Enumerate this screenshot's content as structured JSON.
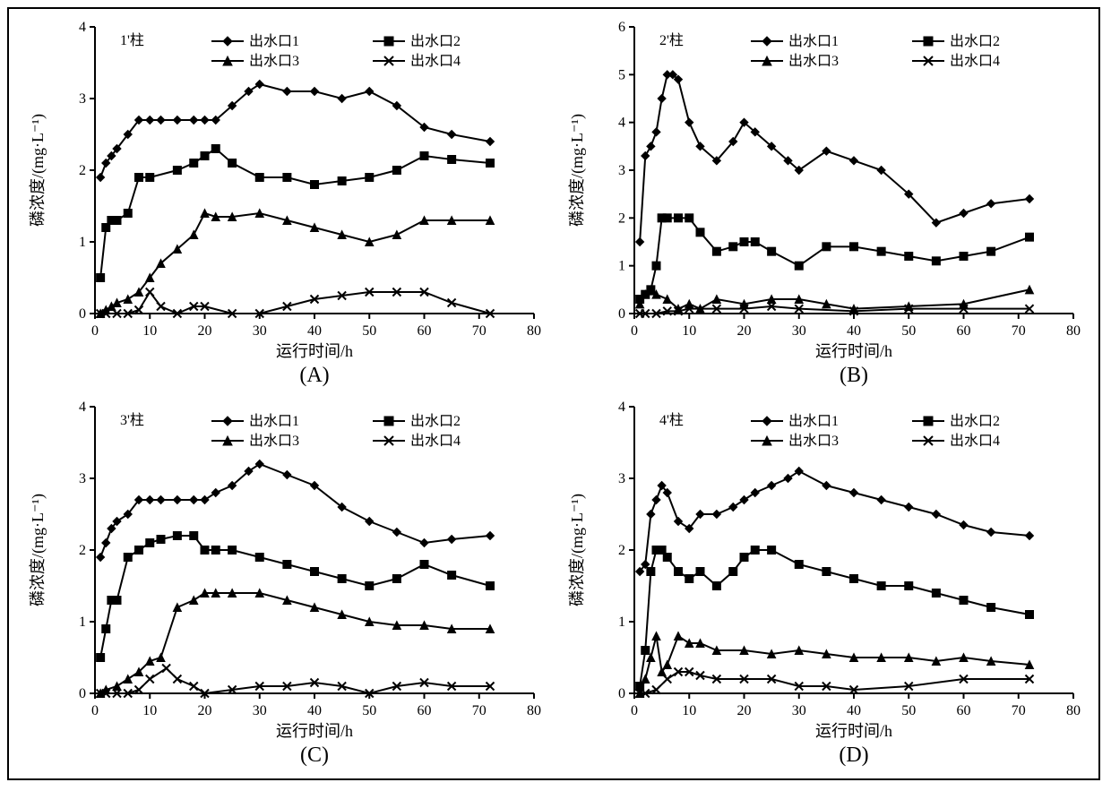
{
  "figure": {
    "background_color": "#ffffff",
    "frame_border_color": "#000000",
    "line_color": "#000000",
    "marker_fill": "#000000",
    "font_family": "SimSun, serif",
    "axis_fontsize": 18,
    "tick_fontsize": 16,
    "legend_fontsize": 16,
    "sublabel_fontsize": 24,
    "panel_layout": "2x2",
    "line_width": 2,
    "marker_size": 6
  },
  "legend_labels": [
    "出水口1",
    "出水口2",
    "出水口3",
    "出水口4"
  ],
  "legend_markers": [
    "diamond",
    "square",
    "triangle",
    "cross"
  ],
  "xlabel": "运行时间/h",
  "ylabel": "磷浓度/(mg·L⁻¹)",
  "panels": {
    "A": {
      "column_title": "1'柱",
      "sublabel": "(A)",
      "xlim": [
        0,
        80
      ],
      "xtick_step": 10,
      "ylim": [
        0,
        4
      ],
      "ytick_step": 1,
      "series": {
        "out1": {
          "x": [
            1,
            2,
            3,
            4,
            6,
            8,
            10,
            12,
            15,
            18,
            20,
            22,
            25,
            28,
            30,
            35,
            40,
            45,
            50,
            55,
            60,
            65,
            72
          ],
          "y": [
            1.9,
            2.1,
            2.2,
            2.3,
            2.5,
            2.7,
            2.7,
            2.7,
            2.7,
            2.7,
            2.7,
            2.7,
            2.9,
            3.1,
            3.2,
            3.1,
            3.1,
            3.0,
            3.1,
            2.9,
            2.6,
            2.5,
            2.4
          ]
        },
        "out2": {
          "x": [
            1,
            2,
            3,
            4,
            6,
            8,
            10,
            15,
            18,
            20,
            22,
            25,
            30,
            35,
            40,
            45,
            50,
            55,
            60,
            65,
            72
          ],
          "y": [
            0.5,
            1.2,
            1.3,
            1.3,
            1.4,
            1.9,
            1.9,
            2.0,
            2.1,
            2.2,
            2.3,
            2.1,
            1.9,
            1.9,
            1.8,
            1.85,
            1.9,
            2.0,
            2.2,
            2.15,
            2.1
          ]
        },
        "out3": {
          "x": [
            1,
            2,
            3,
            4,
            6,
            8,
            10,
            12,
            15,
            18,
            20,
            22,
            25,
            30,
            35,
            40,
            45,
            50,
            55,
            60,
            65,
            72
          ],
          "y": [
            0,
            0.05,
            0.1,
            0.15,
            0.2,
            0.3,
            0.5,
            0.7,
            0.9,
            1.1,
            1.4,
            1.35,
            1.35,
            1.4,
            1.3,
            1.2,
            1.1,
            1.0,
            1.1,
            1.3,
            1.3,
            1.3
          ]
        },
        "out4": {
          "x": [
            1,
            2,
            4,
            6,
            8,
            10,
            12,
            15,
            18,
            20,
            25,
            30,
            35,
            40,
            45,
            50,
            55,
            60,
            65,
            72
          ],
          "y": [
            0,
            0,
            0,
            0,
            0.05,
            0.3,
            0.1,
            0.0,
            0.1,
            0.1,
            0.0,
            0.0,
            0.1,
            0.2,
            0.25,
            0.3,
            0.3,
            0.3,
            0.15,
            0.0
          ]
        }
      }
    },
    "B": {
      "column_title": "2'柱",
      "sublabel": "(B)",
      "xlim": [
        0,
        80
      ],
      "xtick_step": 10,
      "ylim": [
        0,
        6
      ],
      "ytick_step": 1,
      "series": {
        "out1": {
          "x": [
            1,
            2,
            3,
            4,
            5,
            6,
            7,
            8,
            10,
            12,
            15,
            18,
            20,
            22,
            25,
            28,
            30,
            35,
            40,
            45,
            50,
            55,
            60,
            65,
            72
          ],
          "y": [
            1.5,
            3.3,
            3.5,
            3.8,
            4.5,
            5.0,
            5.0,
            4.9,
            4.0,
            3.5,
            3.2,
            3.6,
            4.0,
            3.8,
            3.5,
            3.2,
            3.0,
            3.4,
            3.2,
            3.0,
            2.5,
            1.9,
            2.1,
            2.3,
            2.4
          ]
        },
        "out2": {
          "x": [
            1,
            2,
            3,
            4,
            5,
            6,
            8,
            10,
            12,
            15,
            18,
            20,
            22,
            25,
            30,
            35,
            40,
            45,
            50,
            55,
            60,
            65,
            72
          ],
          "y": [
            0.3,
            0.4,
            0.5,
            1.0,
            2.0,
            2.0,
            2.0,
            2.0,
            1.7,
            1.3,
            1.4,
            1.5,
            1.5,
            1.3,
            1.0,
            1.4,
            1.4,
            1.3,
            1.2,
            1.1,
            1.2,
            1.3,
            1.6
          ]
        },
        "out3": {
          "x": [
            1,
            2,
            4,
            6,
            8,
            10,
            12,
            15,
            20,
            25,
            30,
            35,
            40,
            50,
            60,
            72
          ],
          "y": [
            0.2,
            0.4,
            0.4,
            0.3,
            0.1,
            0.2,
            0.1,
            0.3,
            0.2,
            0.3,
            0.3,
            0.2,
            0.1,
            0.15,
            0.2,
            0.5
          ]
        },
        "out4": {
          "x": [
            1,
            2,
            4,
            6,
            8,
            10,
            15,
            20,
            25,
            30,
            40,
            50,
            60,
            72
          ],
          "y": [
            0,
            0,
            0,
            0.05,
            0.05,
            0.1,
            0.1,
            0.1,
            0.15,
            0.1,
            0.05,
            0.1,
            0.1,
            0.1
          ]
        }
      }
    },
    "C": {
      "column_title": "3'柱",
      "sublabel": "(C)",
      "xlim": [
        0,
        80
      ],
      "xtick_step": 10,
      "ylim": [
        0,
        4
      ],
      "ytick_step": 1,
      "series": {
        "out1": {
          "x": [
            1,
            2,
            3,
            4,
            6,
            8,
            10,
            12,
            15,
            18,
            20,
            22,
            25,
            28,
            30,
            35,
            40,
            45,
            50,
            55,
            60,
            65,
            72
          ],
          "y": [
            1.9,
            2.1,
            2.3,
            2.4,
            2.5,
            2.7,
            2.7,
            2.7,
            2.7,
            2.7,
            2.7,
            2.8,
            2.9,
            3.1,
            3.2,
            3.05,
            2.9,
            2.6,
            2.4,
            2.25,
            2.1,
            2.15,
            2.2
          ]
        },
        "out2": {
          "x": [
            1,
            2,
            3,
            4,
            6,
            8,
            10,
            12,
            15,
            18,
            20,
            22,
            25,
            30,
            35,
            40,
            45,
            50,
            55,
            60,
            65,
            72
          ],
          "y": [
            0.5,
            0.9,
            1.3,
            1.3,
            1.9,
            2.0,
            2.1,
            2.15,
            2.2,
            2.2,
            2.0,
            2.0,
            2.0,
            1.9,
            1.8,
            1.7,
            1.6,
            1.5,
            1.6,
            1.8,
            1.65,
            1.5
          ]
        },
        "out3": {
          "x": [
            1,
            2,
            4,
            6,
            8,
            10,
            12,
            15,
            18,
            20,
            22,
            25,
            30,
            35,
            40,
            45,
            50,
            55,
            60,
            65,
            72
          ],
          "y": [
            0,
            0.05,
            0.1,
            0.2,
            0.3,
            0.45,
            0.5,
            1.2,
            1.3,
            1.4,
            1.4,
            1.4,
            1.4,
            1.3,
            1.2,
            1.1,
            1.0,
            0.95,
            0.95,
            0.9,
            0.9
          ]
        },
        "out4": {
          "x": [
            1,
            2,
            4,
            6,
            8,
            10,
            13,
            15,
            18,
            20,
            25,
            30,
            35,
            40,
            45,
            50,
            55,
            60,
            65,
            72
          ],
          "y": [
            0,
            0,
            0,
            0,
            0.05,
            0.2,
            0.35,
            0.2,
            0.1,
            0.0,
            0.05,
            0.1,
            0.1,
            0.15,
            0.1,
            0.0,
            0.1,
            0.15,
            0.1,
            0.1
          ]
        }
      }
    },
    "D": {
      "column_title": "4'柱",
      "sublabel": "(D)",
      "xlim": [
        0,
        80
      ],
      "xtick_step": 10,
      "ylim": [
        0,
        4
      ],
      "ytick_step": 1,
      "series": {
        "out1": {
          "x": [
            1,
            2,
            3,
            4,
            5,
            6,
            8,
            10,
            12,
            15,
            18,
            20,
            22,
            25,
            28,
            30,
            35,
            40,
            45,
            50,
            55,
            60,
            65,
            72
          ],
          "y": [
            1.7,
            1.8,
            2.5,
            2.7,
            2.9,
            2.8,
            2.4,
            2.3,
            2.5,
            2.5,
            2.6,
            2.7,
            2.8,
            2.9,
            3.0,
            3.1,
            2.9,
            2.8,
            2.7,
            2.6,
            2.5,
            2.35,
            2.25,
            2.2
          ]
        },
        "out2": {
          "x": [
            1,
            2,
            3,
            4,
            5,
            6,
            8,
            10,
            12,
            15,
            18,
            20,
            22,
            25,
            30,
            35,
            40,
            45,
            50,
            55,
            60,
            65,
            72
          ],
          "y": [
            0.1,
            0.6,
            1.7,
            2.0,
            2.0,
            1.9,
            1.7,
            1.6,
            1.7,
            1.5,
            1.7,
            1.9,
            2.0,
            2.0,
            1.8,
            1.7,
            1.6,
            1.5,
            1.5,
            1.4,
            1.3,
            1.2,
            1.1
          ]
        },
        "out3": {
          "x": [
            1,
            2,
            3,
            4,
            5,
            6,
            8,
            10,
            12,
            15,
            20,
            25,
            30,
            35,
            40,
            45,
            50,
            55,
            60,
            65,
            72
          ],
          "y": [
            0,
            0.2,
            0.5,
            0.8,
            0.3,
            0.4,
            0.8,
            0.7,
            0.7,
            0.6,
            0.6,
            0.55,
            0.6,
            0.55,
            0.5,
            0.5,
            0.5,
            0.45,
            0.5,
            0.45,
            0.4
          ]
        },
        "out4": {
          "x": [
            1,
            2,
            4,
            6,
            8,
            10,
            12,
            15,
            20,
            25,
            30,
            35,
            40,
            50,
            60,
            72
          ],
          "y": [
            0,
            0,
            0.05,
            0.2,
            0.3,
            0.3,
            0.25,
            0.2,
            0.2,
            0.2,
            0.1,
            0.1,
            0.05,
            0.1,
            0.2,
            0.2
          ]
        }
      }
    }
  }
}
